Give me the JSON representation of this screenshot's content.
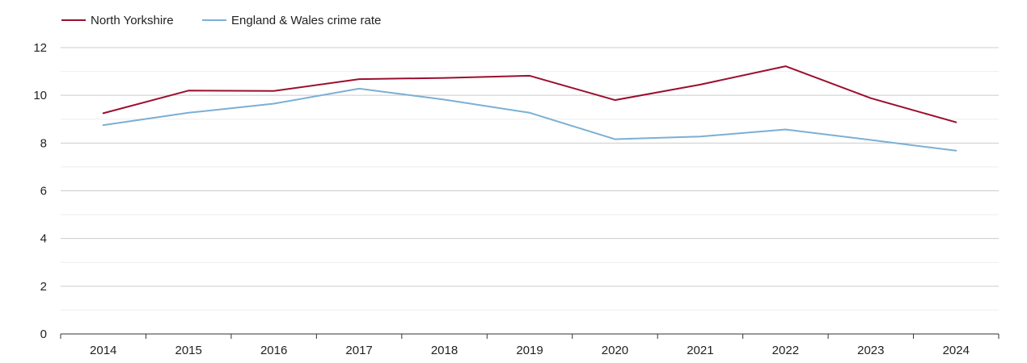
{
  "chart_data": {
    "type": "line",
    "title": "",
    "xlabel": "",
    "ylabel": "",
    "categories": [
      "2014",
      "2015",
      "2016",
      "2017",
      "2018",
      "2019",
      "2020",
      "2021",
      "2022",
      "2023",
      "2024"
    ],
    "ylim": [
      0,
      12
    ],
    "y_ticks": [
      0,
      2,
      4,
      6,
      8,
      10,
      12
    ],
    "grid": true,
    "legend": "top-left",
    "series": [
      {
        "name": "North Yorkshire",
        "color": "#9b0f2e",
        "values": [
          9.25,
          10.2,
          10.18,
          10.68,
          10.73,
          10.82,
          9.8,
          10.45,
          11.22,
          9.88,
          8.87
        ]
      },
      {
        "name": "England & Wales crime rate",
        "color": "#7bafd4",
        "values": [
          8.75,
          9.27,
          9.65,
          10.28,
          9.82,
          9.27,
          8.16,
          8.27,
          8.57,
          8.13,
          7.68
        ]
      }
    ]
  }
}
